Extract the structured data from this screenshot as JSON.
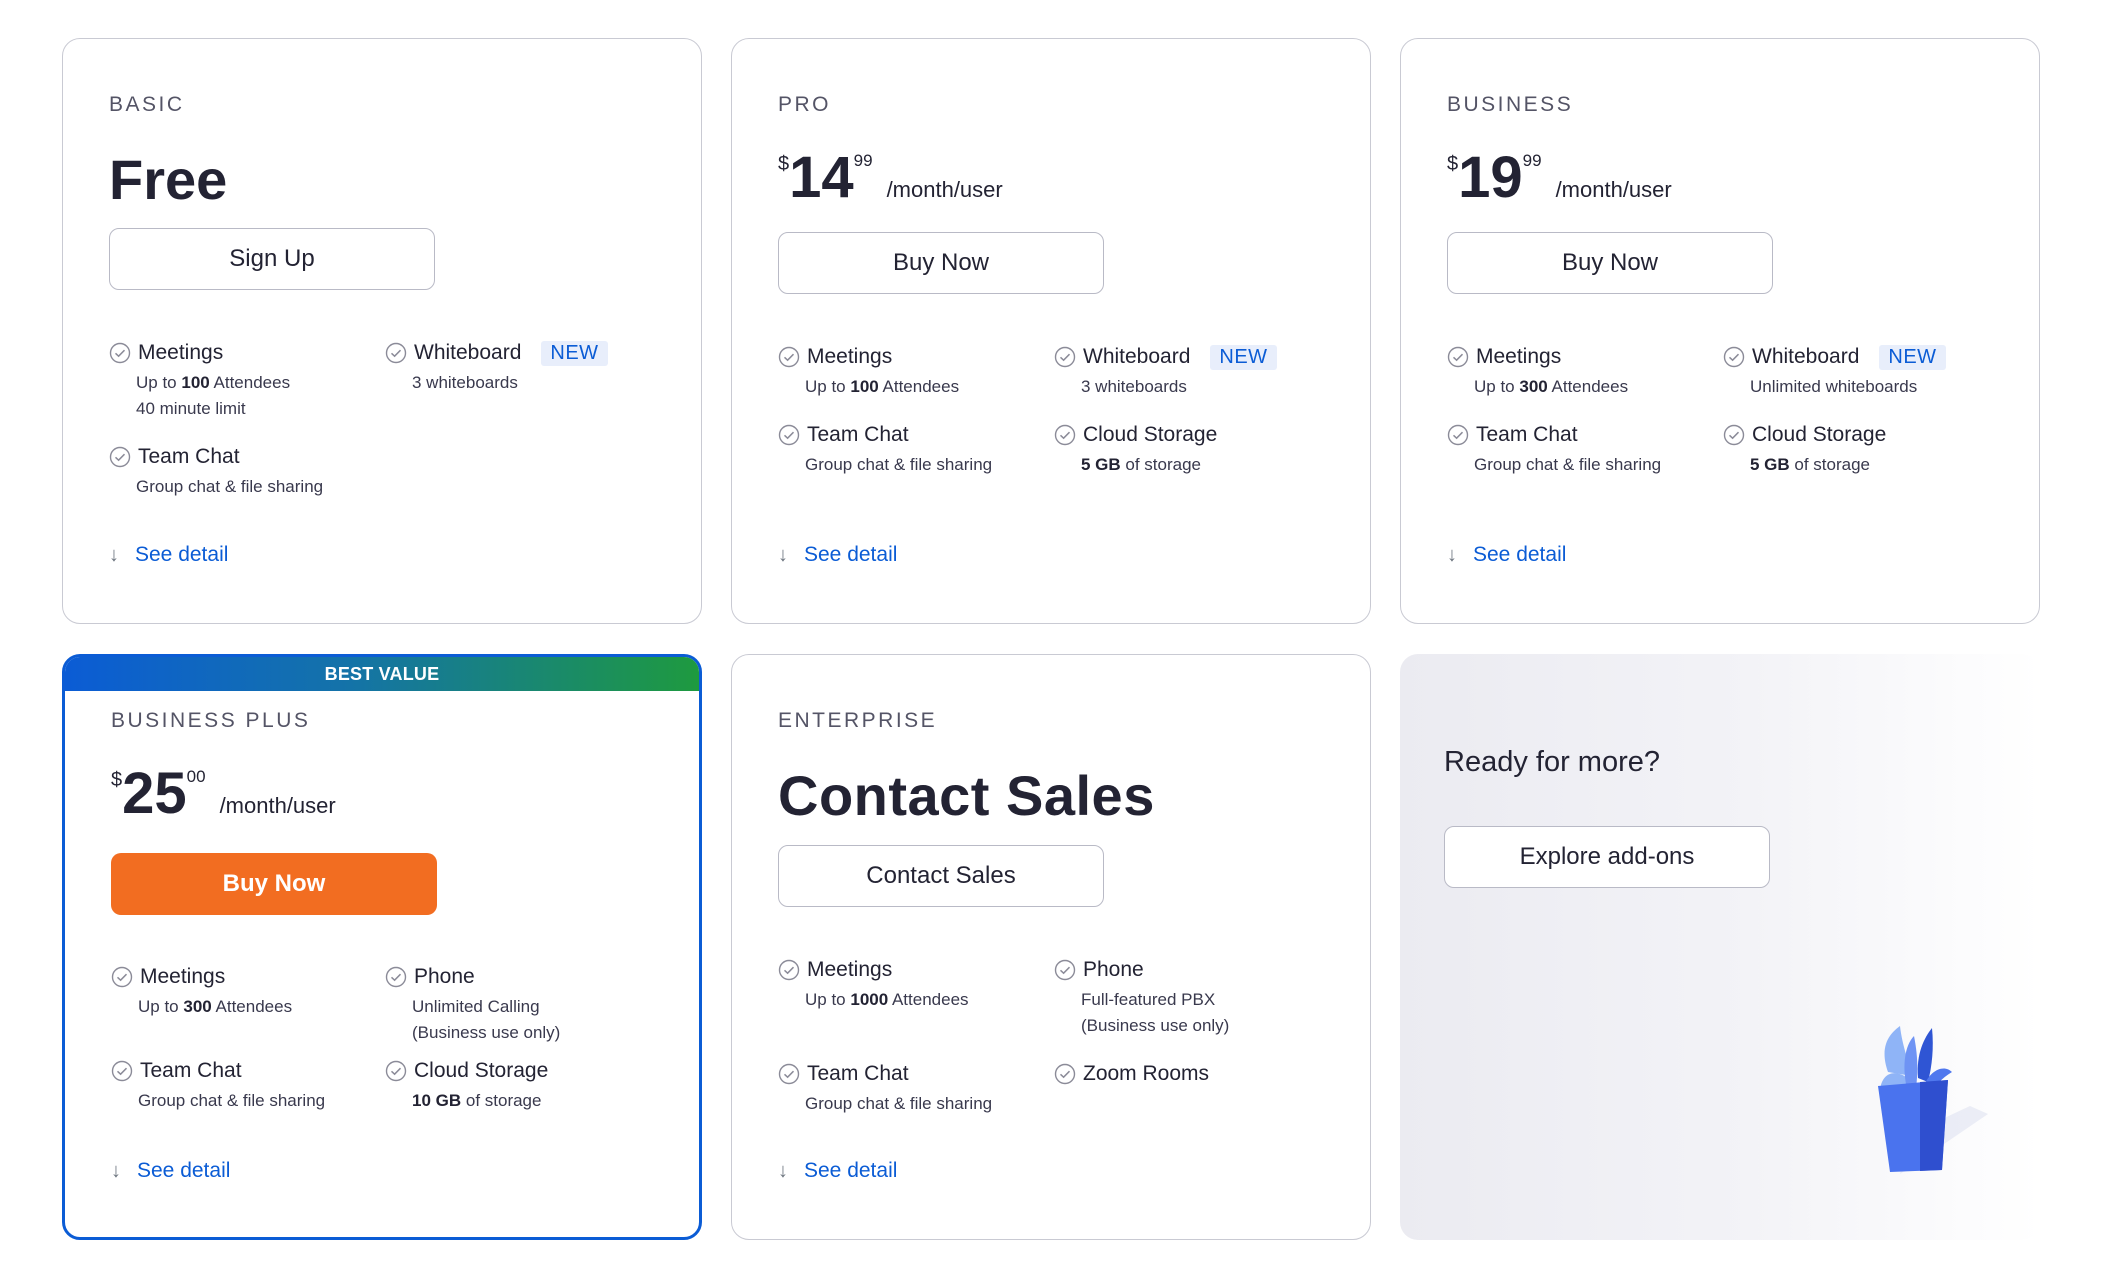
{
  "plans": [
    {
      "tier": "BASIC",
      "price_text": "Free",
      "button": "Sign Up",
      "features": [
        {
          "title": "Meetings",
          "desc_pre": "Up to ",
          "desc_bold": "100",
          "desc_post": " Attendees",
          "desc2": "40 minute limit"
        },
        {
          "title": "Whiteboard",
          "badge": "NEW",
          "desc_pre": "3 whiteboards"
        },
        {
          "title": "Team Chat",
          "desc_pre": "Group chat & file sharing"
        }
      ],
      "detail": "See detail"
    },
    {
      "tier": "PRO",
      "currency": "$",
      "amount": "14",
      "cents": "99",
      "period": "/month/user",
      "button": "Buy Now",
      "features": [
        {
          "title": "Meetings",
          "desc_pre": "Up to ",
          "desc_bold": "100",
          "desc_post": " Attendees"
        },
        {
          "title": "Whiteboard",
          "badge": "NEW",
          "desc_pre": "3 whiteboards"
        },
        {
          "title": "Team Chat",
          "desc_pre": "Group chat & file sharing"
        },
        {
          "title": "Cloud Storage",
          "desc_bold": "5 GB",
          "desc_post": " of storage"
        }
      ],
      "detail": "See detail"
    },
    {
      "tier": "BUSINESS",
      "currency": "$",
      "amount": "19",
      "cents": "99",
      "period": "/month/user",
      "button": "Buy Now",
      "features": [
        {
          "title": "Meetings",
          "desc_pre": "Up to ",
          "desc_bold": "300",
          "desc_post": " Attendees"
        },
        {
          "title": "Whiteboard",
          "badge": "NEW",
          "desc_pre": "Unlimited whiteboards"
        },
        {
          "title": "Team Chat",
          "desc_pre": "Group chat & file sharing"
        },
        {
          "title": "Cloud Storage",
          "desc_bold": "5 GB",
          "desc_post": " of storage"
        }
      ],
      "detail": "See detail"
    },
    {
      "ribbon": "BEST VALUE",
      "tier": "BUSINESS PLUS",
      "currency": "$",
      "amount": "25",
      "cents": "00",
      "period": "/month/user",
      "button": "Buy Now",
      "features": [
        {
          "title": "Meetings",
          "desc_pre": "Up to ",
          "desc_bold": "300",
          "desc_post": " Attendees"
        },
        {
          "title": "Phone",
          "desc_pre": "Unlimited Calling",
          "desc2": "(Business use only)"
        },
        {
          "title": "Team Chat",
          "desc_pre": "Group chat & file sharing"
        },
        {
          "title": "Cloud Storage",
          "desc_bold": "10 GB",
          "desc_post": " of storage"
        }
      ],
      "detail": "See detail"
    },
    {
      "tier": "ENTERPRISE",
      "price_text": "Contact Sales",
      "button": "Contact Sales",
      "features": [
        {
          "title": "Meetings",
          "desc_pre": "Up to ",
          "desc_bold": "1000",
          "desc_post": " Attendees"
        },
        {
          "title": "Phone",
          "desc_pre": "Full-featured PBX",
          "desc2": "(Business use only)"
        },
        {
          "title": "Team Chat",
          "desc_pre": "Group chat & file sharing"
        },
        {
          "title": "Zoom Rooms"
        }
      ],
      "detail": "See detail"
    }
  ],
  "addons": {
    "heading": "Ready for more?",
    "button": "Explore add-ons"
  },
  "colors": {
    "accent": "#0b5cd5",
    "buy_primary": "#f26d21",
    "badge_bg": "#e8eefb"
  }
}
